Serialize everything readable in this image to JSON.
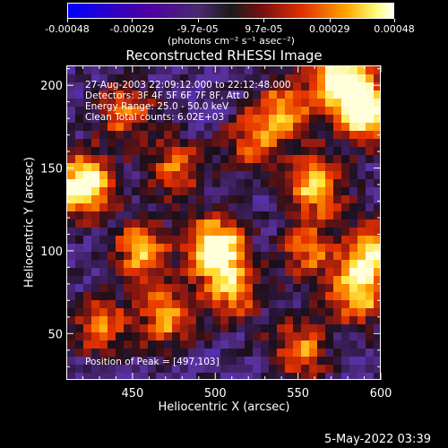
{
  "colorbar": {
    "ticks": [
      "-0.00048",
      "-0.00029",
      "-9.7e-05",
      "9.7e-05",
      "0.00029",
      "0.00048"
    ],
    "units": "(photons cm⁻² s⁻¹ asec⁻²)",
    "range": [
      -0.00048,
      0.00048
    ]
  },
  "chart_data": {
    "type": "heatmap",
    "title": "Reconstructed RHESSI Image",
    "xlabel": "Heliocentric X (arcsec)",
    "ylabel": "Heliocentric Y (arcsec)",
    "xlim": [
      410,
      600
    ],
    "ylim": [
      22,
      212
    ],
    "x_ticks": [
      450,
      500,
      550,
      600
    ],
    "y_ticks": [
      50,
      100,
      150,
      200
    ],
    "grid": false,
    "annotations": {
      "time": "27-Aug-2003 22:09:12.000 to 22:12:48.000",
      "detectors": "Detectors: 3F 4F 5F 6F 7F 8F, Att 0",
      "energy": "Energy Range: 25.0 - 50.0 keV",
      "method": "Clean     Total counts: 6.02E+03",
      "peak": "Position of Peak = [497,103]"
    },
    "bright_sources": [
      {
        "x": 420,
        "y": 140,
        "level": 1.0
      },
      {
        "x": 500,
        "y": 102,
        "level": 1.0
      },
      {
        "x": 590,
        "y": 185,
        "level": 0.95
      },
      {
        "x": 575,
        "y": 205,
        "level": 0.9
      },
      {
        "x": 560,
        "y": 140,
        "level": 0.7
      },
      {
        "x": 455,
        "y": 100,
        "level": 0.65
      },
      {
        "x": 540,
        "y": 185,
        "level": 0.6
      },
      {
        "x": 595,
        "y": 100,
        "level": 0.75
      },
      {
        "x": 585,
        "y": 75,
        "level": 0.7
      },
      {
        "x": 470,
        "y": 60,
        "level": 0.6
      },
      {
        "x": 430,
        "y": 55,
        "level": 0.55
      },
      {
        "x": 510,
        "y": 75,
        "level": 0.55
      },
      {
        "x": 445,
        "y": 185,
        "level": 0.5
      },
      {
        "x": 475,
        "y": 150,
        "level": 0.5
      },
      {
        "x": 550,
        "y": 40,
        "level": 0.55
      },
      {
        "x": 520,
        "y": 165,
        "level": 0.45
      },
      {
        "x": 555,
        "y": 100,
        "level": 0.5
      }
    ]
  },
  "timestamp": "5-May-2022 03:39"
}
